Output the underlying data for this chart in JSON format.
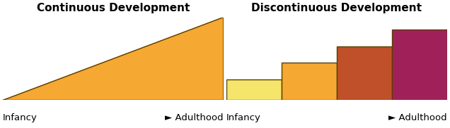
{
  "left_title": "Continuous Development",
  "right_title": "Discontinuous Development",
  "triangle_color": "#F5A832",
  "triangle_edge_color": "#5a3e00",
  "bar_colors": [
    "#F5E56B",
    "#F5A832",
    "#C0502A",
    "#A0215A"
  ],
  "bar_edge_color": "#5a3e00",
  "infancy_label": "Infancy",
  "adulthood_label": "► Adulthood",
  "background_color": "#ffffff",
  "title_fontsize": 11,
  "label_fontsize": 9.5
}
